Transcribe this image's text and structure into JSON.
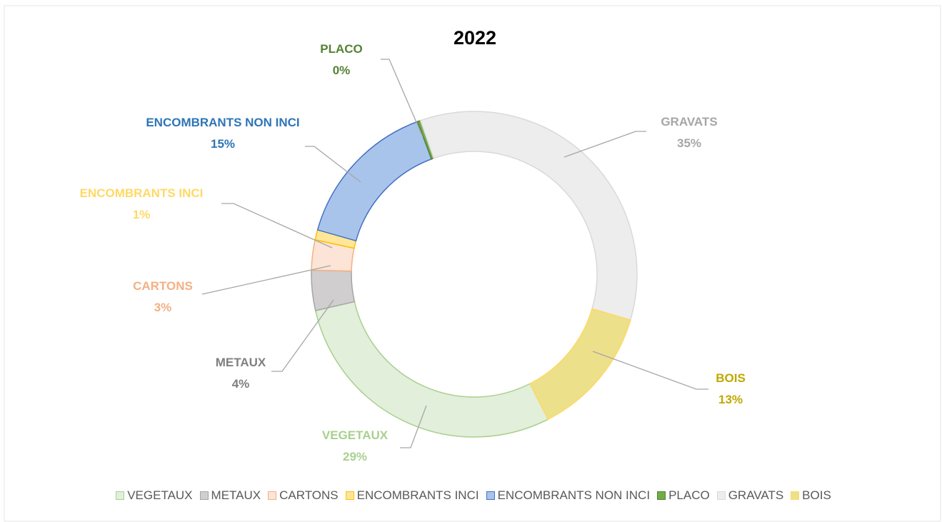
{
  "chart_data": {
    "type": "donut",
    "title": "2022",
    "categories": [
      "VEGETAUX",
      "METAUX",
      "CARTONS",
      "ENCOMBRANTS INCI",
      "ENCOMBRANTS NON INCI",
      "PLACO",
      "GRAVATS",
      "BOIS"
    ],
    "values": [
      29,
      4,
      3,
      1,
      15,
      0.3,
      35,
      13
    ],
    "value_labels": [
      "29%",
      "4%",
      "3%",
      "1%",
      "15%",
      "0%",
      "35%",
      "13%"
    ],
    "colors": [
      "#e2efda",
      "#d0cece",
      "#fce4d6",
      "#ffe699",
      "#a9c4eb",
      "#70ad47",
      "#ededed",
      "#ece08b"
    ],
    "edge_colors": [
      "#a9d08e",
      "#a5a5a5",
      "#f4b084",
      "#ffc000",
      "#4472c4",
      "#548235",
      "#d9d9d9",
      "#ffd966"
    ],
    "label_colors": [
      "#a9d08e",
      "#7f7f7f",
      "#f4b084",
      "#ffd966",
      "#2e75b6",
      "#548235",
      "#a6a6a6",
      "#bfa800"
    ],
    "legend": "bottom"
  }
}
